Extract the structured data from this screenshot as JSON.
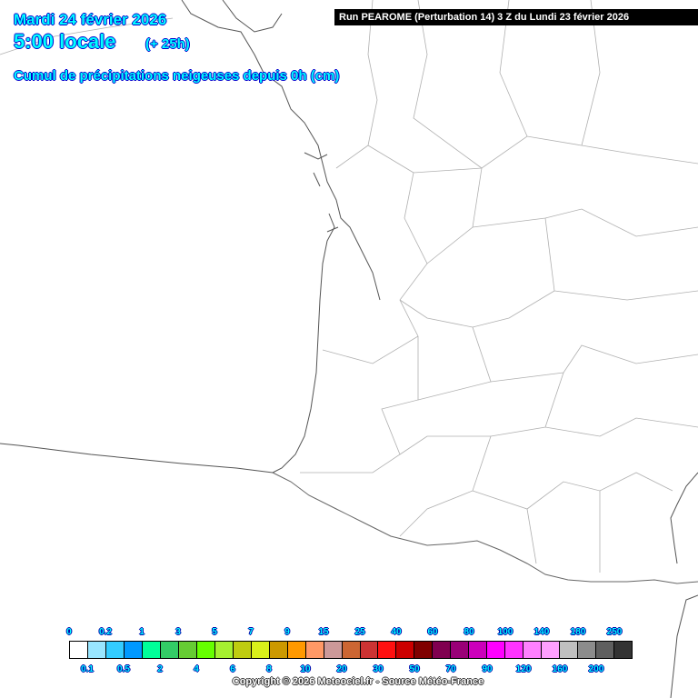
{
  "header": {
    "date": "Mardi 24 février 2026",
    "time": "5:00 locale",
    "offset": "(+ 25h)",
    "parameter": "Cumul de précipitations neigeuses depuis 0h (cm)",
    "run": "Run PEAROME (Perturbation 14) 3 Z du Lundi 23 février 2026"
  },
  "legend": {
    "labels": [
      "0",
      "0.1",
      "0.2",
      "0.5",
      "1",
      "2",
      "3",
      "4",
      "5",
      "6",
      "7",
      "8",
      "9",
      "10",
      "15",
      "20",
      "25",
      "30",
      "40",
      "50",
      "60",
      "70",
      "80",
      "90",
      "100",
      "120",
      "140",
      "160",
      "180",
      "200",
      "250"
    ],
    "colors": [
      "#ffffff",
      "#99e6ff",
      "#33ccff",
      "#0099ff",
      "#00ff99",
      "#33cc66",
      "#66cc33",
      "#66ff00",
      "#a6f030",
      "#bfcc10",
      "#d9f01a",
      "#cc9900",
      "#ff9900",
      "#ff9966",
      "#cc9999",
      "#cc6633",
      "#cc3333",
      "#ff1111",
      "#cc0000",
      "#800000",
      "#800050",
      "#990077",
      "#cc00bb",
      "#ff00ff",
      "#ff33ff",
      "#ff80ff",
      "#ffa0ff",
      "#c0c0c0",
      "#8c8c8c",
      "#5f5f5f",
      "#333333"
    ]
  },
  "copyright": "Copyright © 2026 Meteociel.fr - Source Météo-France",
  "map": {
    "coast_color": "#555555",
    "border_color": "#aaaaaa",
    "snow_cover": "none"
  }
}
